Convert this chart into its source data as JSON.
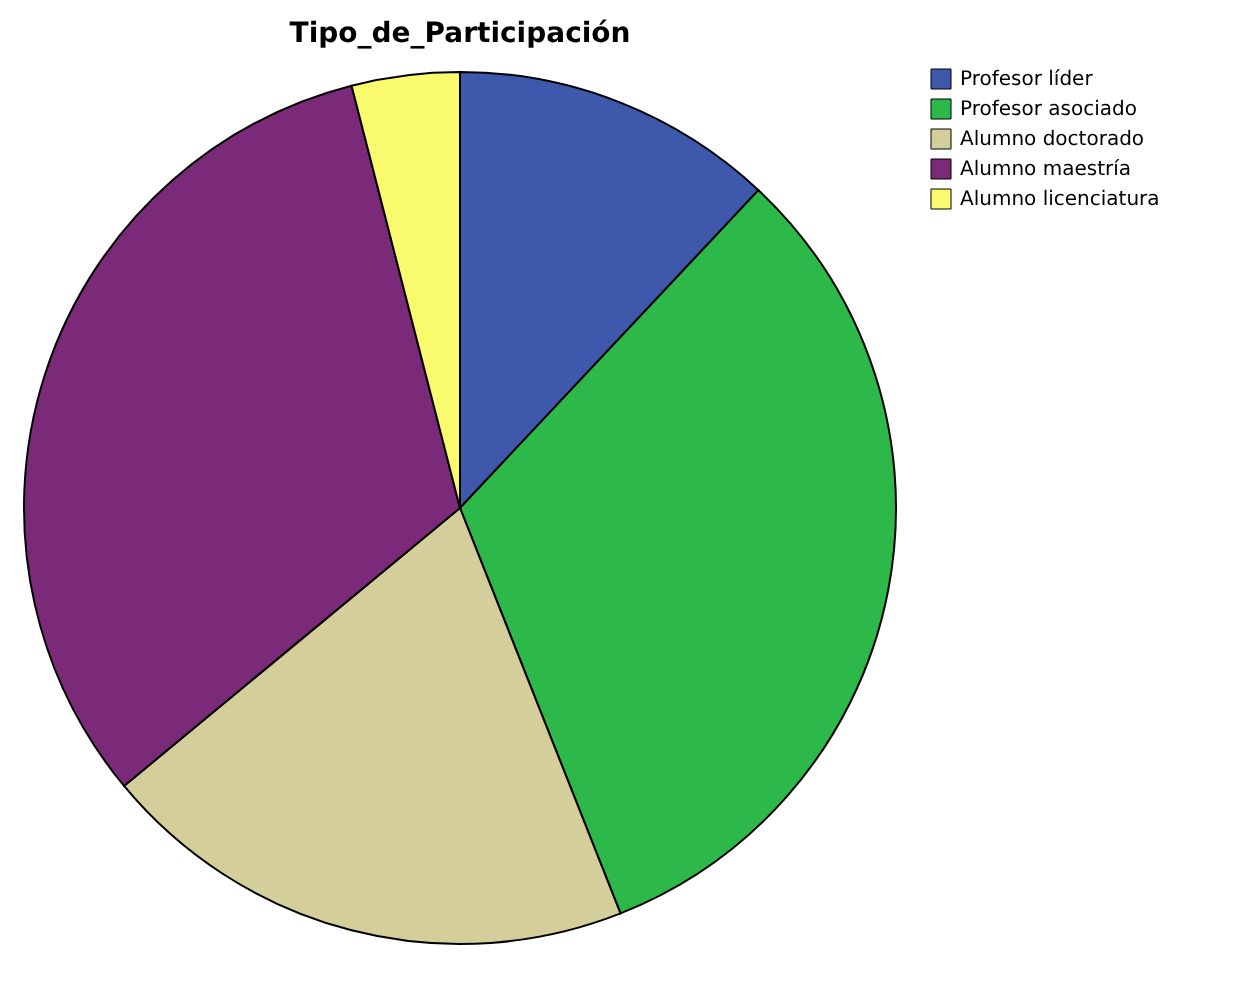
{
  "chart_data": {
    "type": "pie",
    "title": "Tipo_de_Participación",
    "categories": [
      "Profesor líder",
      "Profesor asociado",
      "Alumno doctorado",
      "Alumno maestría",
      "Alumno licenciatura"
    ],
    "values": [
      12,
      32,
      20,
      32,
      4
    ],
    "colors": [
      "#3e58ac",
      "#2db84a",
      "#d4cf9a",
      "#7b2a7a",
      "#fafa6e"
    ],
    "legend": "top right"
  }
}
